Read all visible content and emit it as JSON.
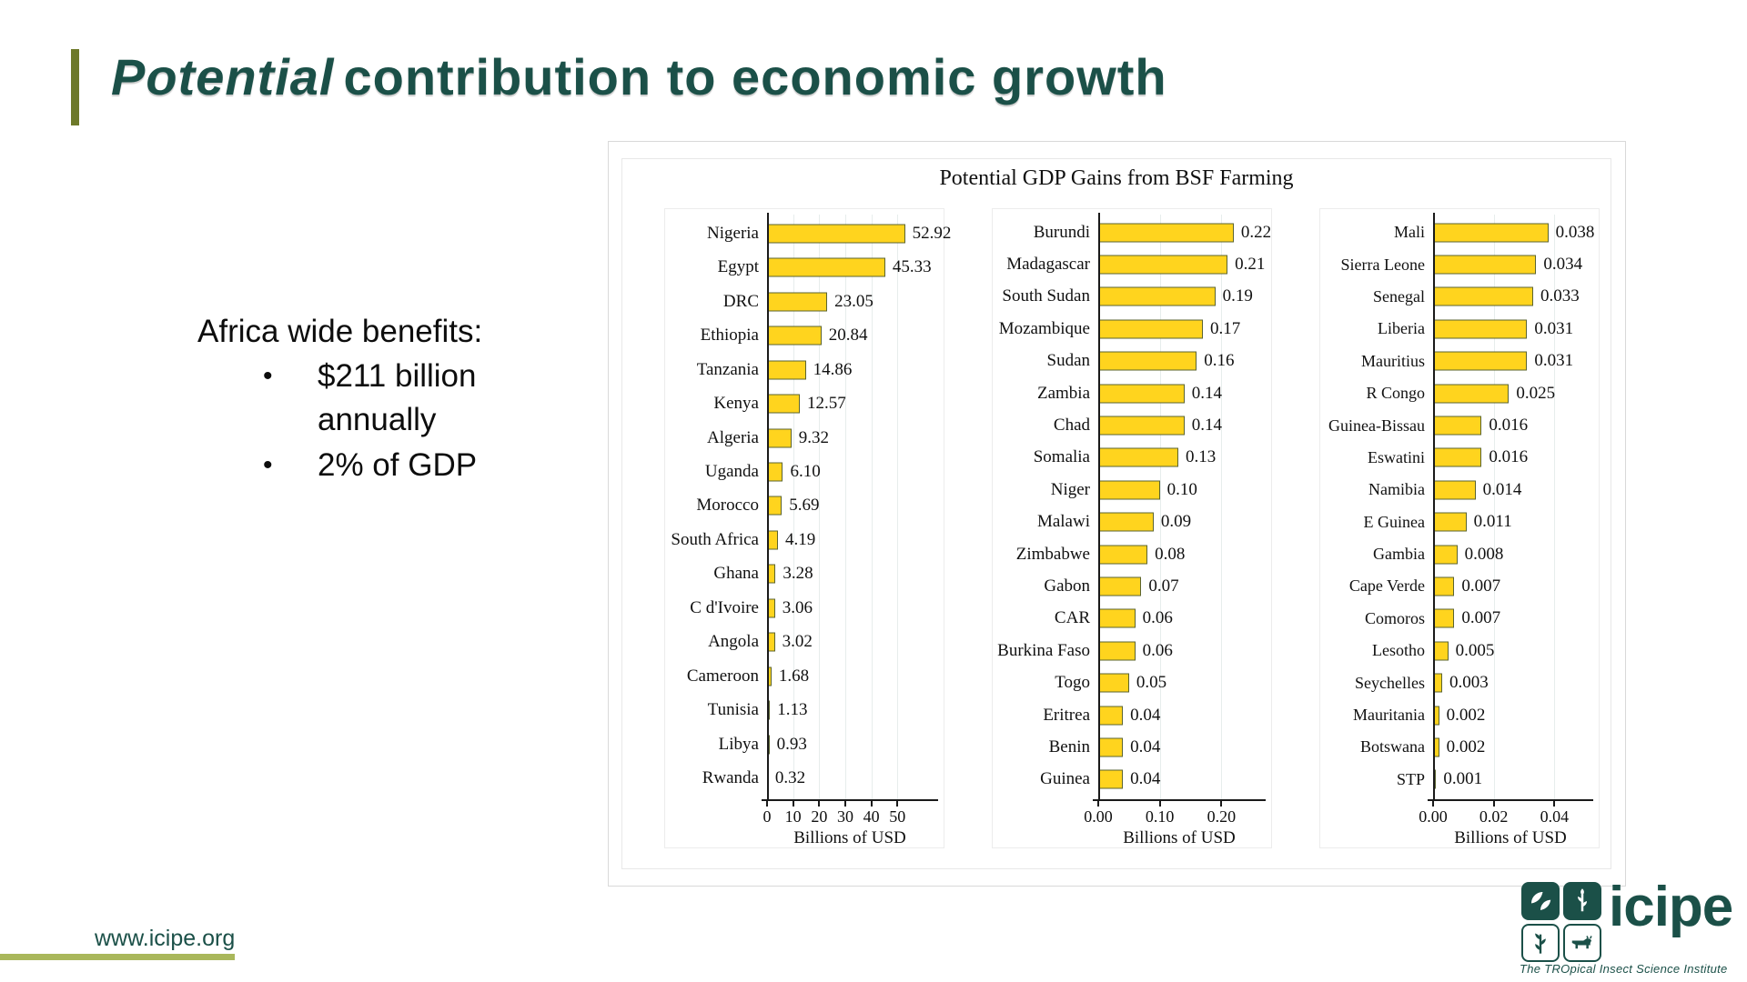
{
  "slide": {
    "title": {
      "italic_part": "Potential",
      "rest_part": "contribution to economic growth"
    },
    "benefits": {
      "heading": "Africa wide benefits:",
      "bullets": [
        "$211 billion annually",
        "2% of GDP"
      ],
      "bullet_marker": "•"
    },
    "footer": {
      "url": "www.icipe.org"
    }
  },
  "logo": {
    "wordmark": "icipe",
    "tagline": "The TROpical Insect Science Institute",
    "tile_icons": [
      "leaf-icon",
      "plant-icon",
      "maize-icon",
      "cow-icon"
    ]
  },
  "colors": {
    "accent_teal": "#1b5048",
    "accent_olive": "#6d7929",
    "accent_olive_light": "#a9b75b",
    "bar_fill": "#ffd41e",
    "bar_border": "#5b6430"
  },
  "chart_data": {
    "type": "bar",
    "orientation": "horizontal",
    "title": "Potential GDP Gains from BSF Farming",
    "bar_color": "#ffd41e",
    "grid": true,
    "panels": [
      {
        "xlabel": "Billions of USD",
        "xlim": [
          0,
          63.5
        ],
        "ticks": [
          0,
          10,
          20,
          30,
          40,
          50
        ],
        "tick_labels": [
          "0",
          "10",
          "20",
          "30",
          "40",
          "50"
        ],
        "categories": [
          "Nigeria",
          "Egypt",
          "DRC",
          "Ethiopia",
          "Tanzania",
          "Kenya",
          "Algeria",
          "Uganda",
          "Morocco",
          "South Africa",
          "Ghana",
          "C d'Ivoire",
          "Angola",
          "Cameroon",
          "Tunisia",
          "Libya",
          "Rwanda"
        ],
        "values": [
          52.92,
          45.33,
          23.05,
          20.84,
          14.86,
          12.57,
          9.32,
          6.1,
          5.69,
          4.19,
          3.28,
          3.06,
          3.02,
          1.68,
          1.13,
          0.93,
          0.32
        ],
        "value_labels": [
          "52.92",
          "45.33",
          "23.05",
          "20.84",
          "14.86",
          "12.57",
          "9.32",
          "6.10",
          "5.69",
          "4.19",
          "3.28",
          "3.06",
          "3.02",
          "1.68",
          "1.13",
          "0.93",
          "0.32"
        ]
      },
      {
        "xlabel": "Billions of USD",
        "xlim": [
          0,
          0.263
        ],
        "ticks": [
          0.0,
          0.1,
          0.2
        ],
        "tick_labels": [
          "0.00",
          "0.10",
          "0.20"
        ],
        "categories": [
          "Burundi",
          "Madagascar",
          "South Sudan",
          "Mozambique",
          "Sudan",
          "Zambia",
          "Chad",
          "Somalia",
          "Niger",
          "Malawi",
          "Zimbabwe",
          "Gabon",
          "CAR",
          "Burkina Faso",
          "Togo",
          "Eritrea",
          "Benin",
          "Guinea"
        ],
        "values": [
          0.22,
          0.21,
          0.19,
          0.17,
          0.16,
          0.14,
          0.14,
          0.13,
          0.1,
          0.09,
          0.08,
          0.07,
          0.06,
          0.06,
          0.05,
          0.04,
          0.04,
          0.04
        ],
        "value_labels": [
          "0.22",
          "0.21",
          "0.19",
          "0.17",
          "0.16",
          "0.14",
          "0.14",
          "0.13",
          "0.10",
          "0.09",
          "0.08",
          "0.07",
          "0.06",
          "0.06",
          "0.05",
          "0.04",
          "0.04",
          "0.04"
        ]
      },
      {
        "xlabel": "Billions of USD",
        "xlim": [
          0,
          0.051
        ],
        "ticks": [
          0.0,
          0.02,
          0.04
        ],
        "tick_labels": [
          "0.00",
          "0.02",
          "0.04"
        ],
        "categories": [
          "Mali",
          "Sierra Leone",
          "Senegal",
          "Liberia",
          "Mauritius",
          "R Congo",
          "Guinea-Bissau",
          "Eswatini",
          "Namibia",
          "E Guinea",
          "Gambia",
          "Cape Verde",
          "Comoros",
          "Lesotho",
          "Seychelles",
          "Mauritania",
          "Botswana",
          "STP"
        ],
        "values": [
          0.038,
          0.034,
          0.033,
          0.031,
          0.031,
          0.025,
          0.016,
          0.016,
          0.014,
          0.011,
          0.008,
          0.007,
          0.007,
          0.005,
          0.003,
          0.002,
          0.002,
          0.001
        ],
        "value_labels": [
          "0.038",
          "0.034",
          "0.033",
          "0.031",
          "0.031",
          "0.025",
          "0.016",
          "0.016",
          "0.014",
          "0.011",
          "0.008",
          "0.007",
          "0.007",
          "0.005",
          "0.003",
          "0.002",
          "0.002",
          "0.001"
        ]
      }
    ]
  }
}
